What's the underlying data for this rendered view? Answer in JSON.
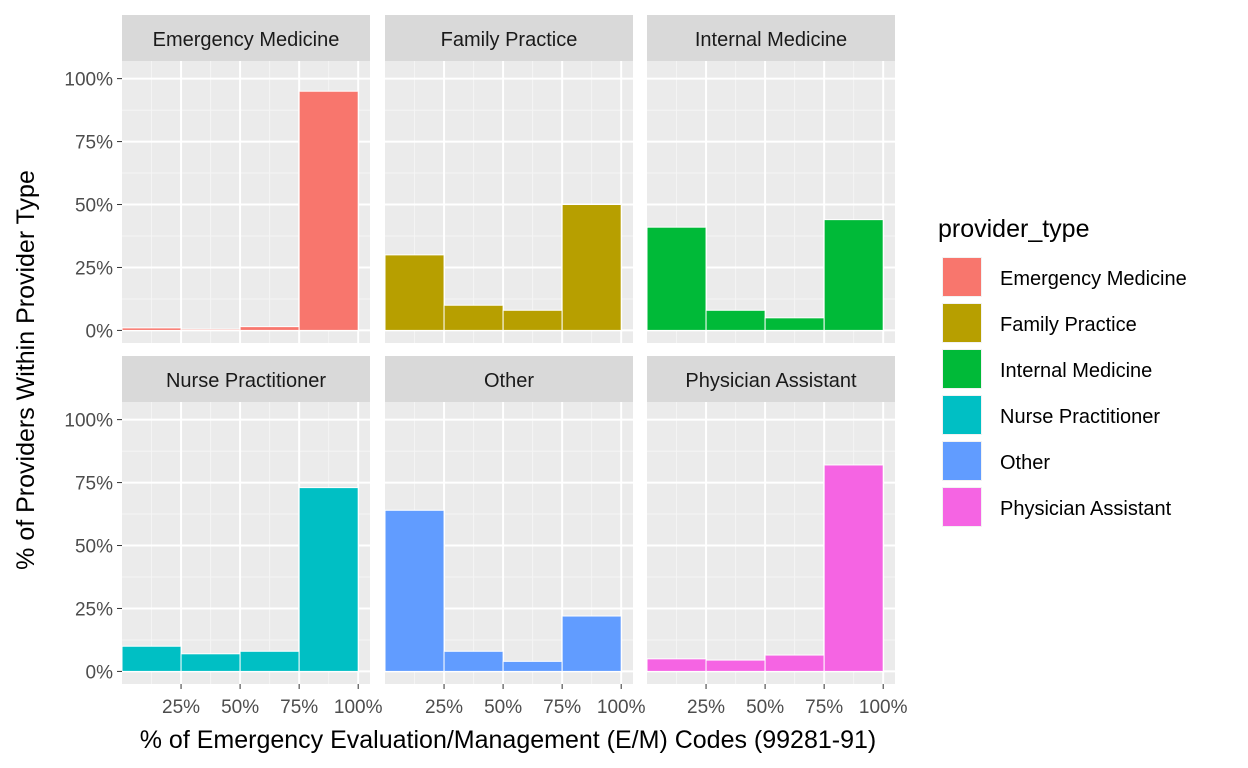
{
  "chart_data": {
    "type": "bar",
    "facet_by": "provider_type",
    "xlabel": "% of Emergency Evaluation/Management (E/M) Codes (99281-91)",
    "ylabel": "% of Providers Within Provider Type",
    "x_tick_labels": [
      "25%",
      "50%",
      "75%",
      "100%"
    ],
    "y_tick_labels": [
      "0%",
      "25%",
      "50%",
      "75%",
      "100%"
    ],
    "ylim": [
      0,
      1
    ],
    "grid": true,
    "legend": {
      "title": "provider_type",
      "position": "right",
      "entries": [
        {
          "label": "Emergency Medicine",
          "color": "#F8766D"
        },
        {
          "label": "Family Practice",
          "color": "#B79F00"
        },
        {
          "label": "Internal Medicine",
          "color": "#00BA38"
        },
        {
          "label": "Nurse Practitioner",
          "color": "#00BFC4"
        },
        {
          "label": "Other",
          "color": "#619CFF"
        },
        {
          "label": "Physician Assistant",
          "color": "#F564E3"
        }
      ]
    },
    "bin_centers": [
      0.125,
      0.375,
      0.625,
      0.875
    ],
    "bin_width": 0.25,
    "panels": [
      {
        "name": "Emergency Medicine",
        "color": "#F8766D",
        "values": [
          0.01,
          0.005,
          0.015,
          0.95
        ]
      },
      {
        "name": "Family Practice",
        "color": "#B79F00",
        "values": [
          0.3,
          0.1,
          0.08,
          0.5
        ]
      },
      {
        "name": "Internal Medicine",
        "color": "#00BA38",
        "values": [
          0.41,
          0.08,
          0.05,
          0.44
        ]
      },
      {
        "name": "Nurse Practitioner",
        "color": "#00BFC4",
        "values": [
          0.1,
          0.07,
          0.08,
          0.73
        ]
      },
      {
        "name": "Other",
        "color": "#619CFF",
        "values": [
          0.64,
          0.08,
          0.04,
          0.22
        ]
      },
      {
        "name": "Physician Assistant",
        "color": "#F564E3",
        "values": [
          0.05,
          0.045,
          0.065,
          0.82
        ]
      }
    ]
  }
}
